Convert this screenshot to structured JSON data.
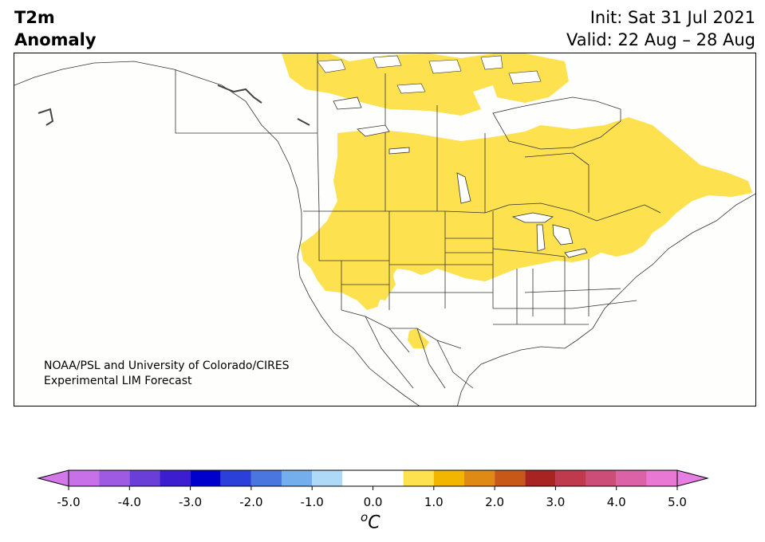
{
  "header": {
    "title_line1": "T2m",
    "title_line2": "Anomaly",
    "init_label": "Init: Sat 31 Jul 2021",
    "valid_label": "Valid: 22 Aug – 28 Aug"
  },
  "credit": {
    "line1": "NOAA/PSL and University of Colorado/CIRES",
    "line2": "Experimental LIM Forecast"
  },
  "colorbar": {
    "unit_symbol": "o",
    "unit_letter": "C",
    "ticks": [
      "-5.0",
      "-4.0",
      "-3.0",
      "-2.0",
      "-1.0",
      "0.0",
      "1.0",
      "2.0",
      "3.0",
      "4.0",
      "5.0"
    ],
    "tick_values": [
      -5,
      -4,
      -3,
      -2,
      -1,
      0,
      1,
      2,
      3,
      4,
      5
    ],
    "range": [
      -5,
      5
    ],
    "bins": [
      {
        "from": -5.0,
        "to": -4.5,
        "color": "#c870e8"
      },
      {
        "from": -4.5,
        "to": -4.0,
        "color": "#9e5ae2"
      },
      {
        "from": -4.0,
        "to": -3.5,
        "color": "#6a3fd8"
      },
      {
        "from": -3.5,
        "to": -3.0,
        "color": "#3c1ed0"
      },
      {
        "from": -3.0,
        "to": -2.5,
        "color": "#0000cc"
      },
      {
        "from": -2.5,
        "to": -2.0,
        "color": "#2a40d8"
      },
      {
        "from": -2.0,
        "to": -1.5,
        "color": "#4a76e0"
      },
      {
        "from": -1.5,
        "to": -1.0,
        "color": "#74aeec"
      },
      {
        "from": -1.0,
        "to": -0.5,
        "color": "#aedaf8"
      },
      {
        "from": -0.5,
        "to": 0.5,
        "color": "#ffffff"
      },
      {
        "from": 0.5,
        "to": 1.0,
        "color": "#fde14e"
      },
      {
        "from": 1.0,
        "to": 1.5,
        "color": "#f2b600"
      },
      {
        "from": 1.5,
        "to": 2.0,
        "color": "#df8a14"
      },
      {
        "from": 2.0,
        "to": 2.5,
        "color": "#c85818"
      },
      {
        "from": 2.5,
        "to": 3.0,
        "color": "#a82422"
      },
      {
        "from": 3.0,
        "to": 3.5,
        "color": "#be3a4c"
      },
      {
        "from": 3.5,
        "to": 4.0,
        "color": "#cc4e78"
      },
      {
        "from": 4.0,
        "to": 4.5,
        "color": "#dc62a8"
      },
      {
        "from": 4.5,
        "to": 5.0,
        "color": "#e878d4"
      }
    ],
    "under_color": "#d378e8",
    "over_color": "#e67ee4"
  },
  "map": {
    "land_color": "#fefefc",
    "anomaly_fill_color": "#fde14e",
    "anomaly_range_shown": "0.5 to 1.0"
  }
}
